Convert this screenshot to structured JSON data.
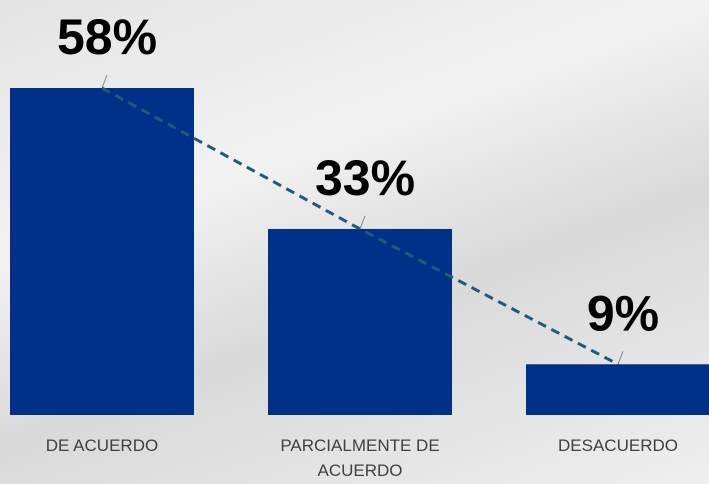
{
  "chart_data": {
    "type": "bar",
    "categories": [
      "DE ACUERDO",
      "PARCIALMENTE DE ACUERDO",
      "DESACUERDO"
    ],
    "values": [
      58,
      33,
      9
    ],
    "value_labels": [
      "58%",
      "33%",
      "9%"
    ],
    "color": "#003087",
    "trendline": {
      "color": "#1f5a7a",
      "dashed": true
    }
  }
}
